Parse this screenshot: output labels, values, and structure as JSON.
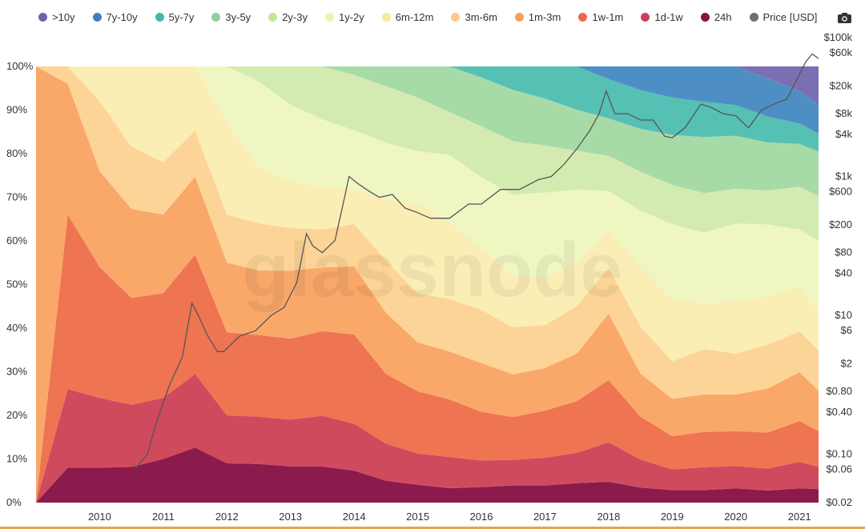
{
  "chart_data": {
    "type": "area",
    "watermark": "glassnode",
    "x_ticks": [
      "2010",
      "2011",
      "2012",
      "2013",
      "2014",
      "2015",
      "2016",
      "2017",
      "2018",
      "2019",
      "2020",
      "2021"
    ],
    "y_left_ticks": [
      "0%",
      "10%",
      "20%",
      "30%",
      "40%",
      "50%",
      "60%",
      "70%",
      "80%",
      "90%",
      "100%"
    ],
    "y_right_ticks": [
      {
        "label": "$100k",
        "value": 100000
      },
      {
        "label": "$60k",
        "value": 60000
      },
      {
        "label": "$20k",
        "value": 20000
      },
      {
        "label": "$8k",
        "value": 8000
      },
      {
        "label": "$4k",
        "value": 4000
      },
      {
        "label": "$1k",
        "value": 1000
      },
      {
        "label": "$600",
        "value": 600
      },
      {
        "label": "$200",
        "value": 200
      },
      {
        "label": "$80",
        "value": 80
      },
      {
        "label": "$40",
        "value": 40
      },
      {
        "label": "$10",
        "value": 10
      },
      {
        "label": "$6",
        "value": 6
      },
      {
        "label": "$2",
        "value": 2
      },
      {
        "label": "$0.80",
        "value": 0.8
      },
      {
        "label": "$0.40",
        "value": 0.4
      },
      {
        "label": "$0.10",
        "value": 0.1
      },
      {
        "label": "$0.06",
        "value": 0.06
      },
      {
        "label": "$0.02",
        "value": 0.02
      }
    ],
    "x_range": [
      2009.0,
      2021.3
    ],
    "y_left_range": [
      0,
      100
    ],
    "y_right_scale": "log",
    "y_right_range": [
      0.02,
      100000
    ],
    "x": [
      2009.0,
      2009.5,
      2010.0,
      2010.5,
      2011.0,
      2011.5,
      2012.0,
      2012.5,
      2013.0,
      2013.5,
      2014.0,
      2014.5,
      2015.0,
      2015.5,
      2016.0,
      2016.5,
      2017.0,
      2017.5,
      2018.0,
      2018.5,
      2019.0,
      2019.5,
      2020.0,
      2020.5,
      2021.0,
      2021.3
    ],
    "series": [
      {
        "name": ">10y",
        "color": "#7b6fb3",
        "values": [
          0,
          0,
          0,
          0,
          0,
          0,
          0,
          0,
          0,
          0,
          0,
          0,
          0,
          0,
          0,
          0,
          0,
          0,
          0,
          0,
          0,
          0,
          0,
          3.0,
          6.0,
          8.5
        ]
      },
      {
        "name": "7y-10y",
        "color": "#4d8fc4",
        "values": [
          0,
          0,
          0,
          0,
          0,
          0,
          0,
          0,
          0,
          0,
          0,
          0,
          0,
          0,
          0,
          0,
          0,
          0,
          3.0,
          5.5,
          7.5,
          8.5,
          9.5,
          9.5,
          8.0,
          6.5
        ]
      },
      {
        "name": "5y-7y",
        "color": "#56c0b4",
        "values": [
          0,
          0,
          0,
          0,
          0,
          0,
          0,
          0,
          0,
          0,
          0,
          0,
          0,
          0,
          2.5,
          5.5,
          7.5,
          10.0,
          9.5,
          9.0,
          9.0,
          8.5,
          7.5,
          6.5,
          5.0,
          4.0
        ]
      },
      {
        "name": "3y-5y",
        "color": "#a6dba8",
        "values": [
          0,
          0,
          0,
          0,
          0,
          0,
          0,
          0,
          0,
          0,
          2.0,
          4.5,
          7.0,
          9.5,
          11.0,
          12.0,
          11.0,
          9.5,
          9.0,
          10.0,
          12.0,
          13.5,
          13.0,
          12.0,
          10.5,
          10.0
        ]
      },
      {
        "name": "2y-3y",
        "color": "#d3ebb1",
        "values": [
          0,
          0,
          0,
          0,
          0,
          0,
          0,
          3.5,
          9.0,
          12.5,
          13.0,
          13.0,
          12.0,
          9.0,
          11.5,
          12.5,
          11.0,
          9.0,
          8.5,
          9.0,
          9.5,
          9.5,
          8.5,
          8.5,
          10.5,
          10.0
        ]
      },
      {
        "name": "1y-2y",
        "color": "#f0f6c2",
        "values": [
          0,
          0,
          0,
          0,
          0,
          0,
          13.0,
          20.0,
          18.0,
          16.0,
          14.0,
          13.0,
          12.0,
          14.0,
          16.0,
          19.0,
          20.0,
          17.0,
          9.5,
          13.0,
          18.0,
          17.0,
          19.0,
          18.0,
          14.0,
          16.0
        ]
      },
      {
        "name": "6m-12m",
        "color": "#fbeeb5",
        "values": [
          0,
          0,
          8.0,
          18.0,
          22.0,
          14.0,
          21.0,
          13.0,
          11.0,
          10.0,
          8.0,
          14.0,
          20.0,
          16.0,
          14.0,
          12.0,
          11.0,
          10.0,
          9.0,
          14.0,
          15.0,
          11.0,
          13.0,
          12.0,
          11.0,
          8.5
        ]
      },
      {
        "name": "3m-6m",
        "color": "#fdd497",
        "values": [
          0,
          4.0,
          16.0,
          14.0,
          12.0,
          10.0,
          11.0,
          11.0,
          10.0,
          9.0,
          10.0,
          12.0,
          11.0,
          11.0,
          12.0,
          11.0,
          10.0,
          11.0,
          11.0,
          11.0,
          9.0,
          11.0,
          10.0,
          11.0,
          10.0,
          9.0
        ]
      },
      {
        "name": "1m-3m",
        "color": "#f9a86a",
        "values": [
          100,
          30.0,
          22.0,
          20.0,
          18.0,
          17.0,
          16.0,
          15.0,
          16.0,
          15.0,
          16.0,
          14.0,
          11.0,
          10.0,
          11.0,
          10.0,
          10.0,
          11.0,
          16.0,
          10.0,
          9.0,
          9.0,
          9.0,
          11.0,
          12.0,
          9.0
        ]
      },
      {
        "name": "1w-1m",
        "color": "#ef7452",
        "values": [
          0,
          40.0,
          30.0,
          24.0,
          24.0,
          26.0,
          19.0,
          19.0,
          19.0,
          20.0,
          21.0,
          16.0,
          14.0,
          12.0,
          11.0,
          10.0,
          11.0,
          12.0,
          15.0,
          10.0,
          8.0,
          8.5,
          8.5,
          9.0,
          10.0,
          8.0
        ]
      },
      {
        "name": "1d-1w",
        "color": "#d04a5e",
        "values": [
          0,
          18.0,
          16.0,
          14.0,
          14.0,
          16.0,
          11.0,
          11.0,
          11.0,
          12.0,
          11.0,
          8.5,
          7.0,
          6.5,
          6.0,
          6.0,
          6.5,
          7.0,
          9.5,
          6.5,
          5.0,
          5.5,
          5.5,
          5.5,
          6.5,
          5.0
        ]
      },
      {
        "name": "24h",
        "color": "#8b1a4d",
        "values": [
          0,
          8.0,
          8.0,
          8.0,
          10.0,
          12.0,
          9.0,
          9.0,
          8.5,
          8.5,
          7.5,
          5.0,
          4.0,
          3.0,
          3.5,
          4.0,
          4.0,
          4.5,
          5.0,
          3.5,
          3.0,
          3.0,
          3.5,
          3.0,
          3.5,
          3.0
        ]
      }
    ],
    "price": {
      "name": "Price [USD]",
      "color": "#555555",
      "x": [
        2010.55,
        2010.75,
        2010.9,
        2011.1,
        2011.3,
        2011.45,
        2011.55,
        2011.7,
        2011.85,
        2011.95,
        2012.2,
        2012.45,
        2012.7,
        2012.9,
        2013.1,
        2013.25,
        2013.35,
        2013.5,
        2013.7,
        2013.85,
        2013.92,
        2014.05,
        2014.25,
        2014.4,
        2014.6,
        2014.8,
        2015.0,
        2015.2,
        2015.5,
        2015.8,
        2016.0,
        2016.3,
        2016.6,
        2016.9,
        2017.1,
        2017.3,
        2017.5,
        2017.7,
        2017.85,
        2017.96,
        2018.1,
        2018.3,
        2018.5,
        2018.7,
        2018.88,
        2019.0,
        2019.2,
        2019.45,
        2019.6,
        2019.8,
        2020.0,
        2020.2,
        2020.4,
        2020.6,
        2020.8,
        2020.95,
        2021.1,
        2021.2,
        2021.3
      ],
      "y": [
        0.06,
        0.1,
        0.3,
        1,
        2.5,
        15,
        10,
        5,
        3,
        3,
        5,
        6,
        10,
        13,
        30,
        150,
        100,
        80,
        120,
        500,
        1000,
        800,
        600,
        500,
        550,
        350,
        300,
        250,
        250,
        400,
        400,
        650,
        650,
        900,
        1000,
        1500,
        2500,
        4500,
        8000,
        17000,
        8000,
        8000,
        6500,
        6500,
        3800,
        3600,
        5000,
        11000,
        10000,
        8000,
        7500,
        5000,
        9000,
        11000,
        13000,
        24000,
        45000,
        58000,
        50000
      ]
    }
  },
  "legend": [
    {
      "label": ">10y",
      "color": "#6d62b0"
    },
    {
      "label": "7y-10y",
      "color": "#3e82bd"
    },
    {
      "label": "5y-7y",
      "color": "#45b8aa"
    },
    {
      "label": "3y-5y",
      "color": "#8fd19b"
    },
    {
      "label": "2y-3y",
      "color": "#c4e69b"
    },
    {
      "label": "1y-2y",
      "color": "#eef5a8"
    },
    {
      "label": "6m-12m",
      "color": "#fbe7a0"
    },
    {
      "label": "3m-6m",
      "color": "#fcc987"
    },
    {
      "label": "1m-3m",
      "color": "#f7a05e"
    },
    {
      "label": "1w-1m",
      "color": "#ec6a4c"
    },
    {
      "label": "1d-1w",
      "color": "#c9435b"
    },
    {
      "label": "24h",
      "color": "#8b1147"
    },
    {
      "label": "Price [USD]",
      "color": "#6e6e6e"
    }
  ],
  "toolbar": {
    "icon": "camera-icon"
  }
}
